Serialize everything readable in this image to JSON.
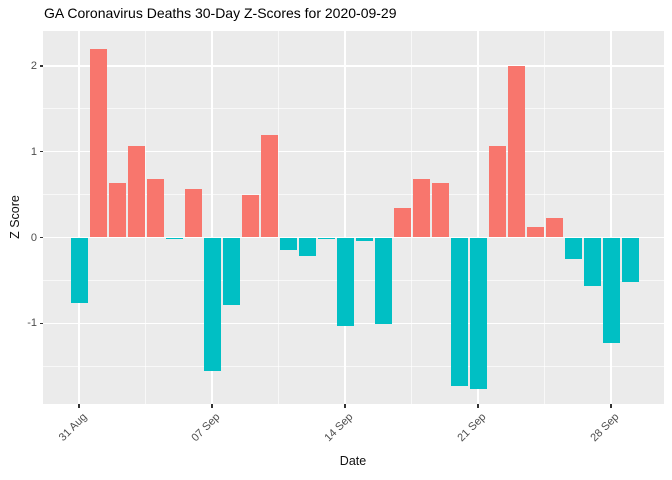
{
  "chart_data": {
    "type": "bar",
    "title": "GA Coronavirus Deaths 30-Day Z-Scores for 2020-09-29",
    "xlabel": "Date",
    "ylabel": "Z Score",
    "x": [
      "2020-08-31",
      "2020-09-01",
      "2020-09-02",
      "2020-09-03",
      "2020-09-04",
      "2020-09-05",
      "2020-09-06",
      "2020-09-07",
      "2020-09-08",
      "2020-09-09",
      "2020-09-10",
      "2020-09-11",
      "2020-09-12",
      "2020-09-13",
      "2020-09-14",
      "2020-09-15",
      "2020-09-16",
      "2020-09-17",
      "2020-09-18",
      "2020-09-19",
      "2020-09-20",
      "2020-09-21",
      "2020-09-22",
      "2020-09-23",
      "2020-09-24",
      "2020-09-25",
      "2020-09-26",
      "2020-09-27",
      "2020-09-28",
      "2020-09-29"
    ],
    "values": [
      -0.76,
      2.2,
      0.64,
      1.07,
      0.68,
      -0.02,
      0.56,
      -1.56,
      -0.79,
      0.49,
      1.19,
      -0.15,
      -0.21,
      -0.02,
      -1.03,
      -0.04,
      -1.01,
      0.34,
      0.68,
      0.64,
      -1.73,
      -1.77,
      1.07,
      2.0,
      0.12,
      0.23,
      -0.25,
      -0.57,
      -1.23,
      -0.52
    ],
    "x_tick_labels": [
      "31 Aug",
      "07 Sep",
      "14 Sep",
      "21 Sep",
      "28 Sep"
    ],
    "x_tick_dates": [
      "2020-08-31",
      "2020-09-07",
      "2020-09-14",
      "2020-09-21",
      "2020-09-28"
    ],
    "y_ticks": [
      2,
      1,
      0,
      -1
    ],
    "y_minor_ticks": [
      1.5,
      0.5,
      -0.5,
      -1.5
    ],
    "ylim": [
      -1.96,
      2.4
    ],
    "grid": true,
    "legend": "none",
    "colors": {
      "positive": "#F8766D",
      "negative": "#00BFC4",
      "panel_background": "#EBEBEB",
      "gridline": "#FFFFFF"
    }
  }
}
